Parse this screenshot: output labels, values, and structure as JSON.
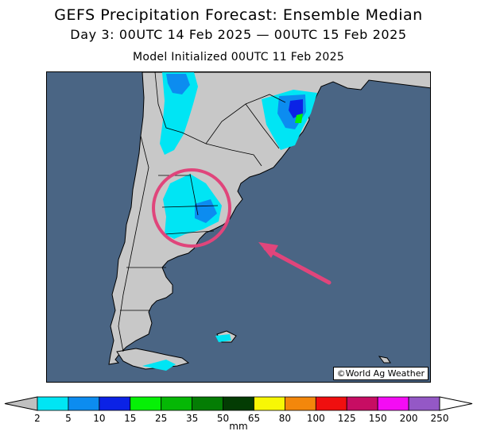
{
  "title": "GEFS Precipitation Forecast: Ensemble Median",
  "subtitle": "Day 3: 00UTC 14 Feb 2025 — 00UTC 15 Feb 2025",
  "initialized": "Model Initialized 00UTC 11 Feb 2025",
  "credit": "©World Ag Weather",
  "colors": {
    "ocean": "#4a6584",
    "land": "#c8c8c8",
    "border": "#000000",
    "highlight_circle": "#e0457b",
    "highlight_arrow": "#e0457b"
  },
  "colorbar": {
    "units": "mm",
    "levels": [
      "2",
      "5",
      "10",
      "15",
      "25",
      "35",
      "50",
      "65",
      "80",
      "100",
      "125",
      "150",
      "200",
      "250"
    ],
    "colors": [
      "#00e5f4",
      "#0c8cf0",
      "#0b22e6",
      "#06f006",
      "#05b805",
      "#047d04",
      "#033c03",
      "#f7f705",
      "#f3870b",
      "#f00f0f",
      "#c70d63",
      "#f40cf4",
      "#9458c6"
    ],
    "below_color": "#c0c0c0",
    "above_color": "#ffffff"
  },
  "annotation": {
    "circle": "highlighted region: central Argentina (La Pampa / Buenos Aires)",
    "arrow": "pointing to highlighted region"
  }
}
